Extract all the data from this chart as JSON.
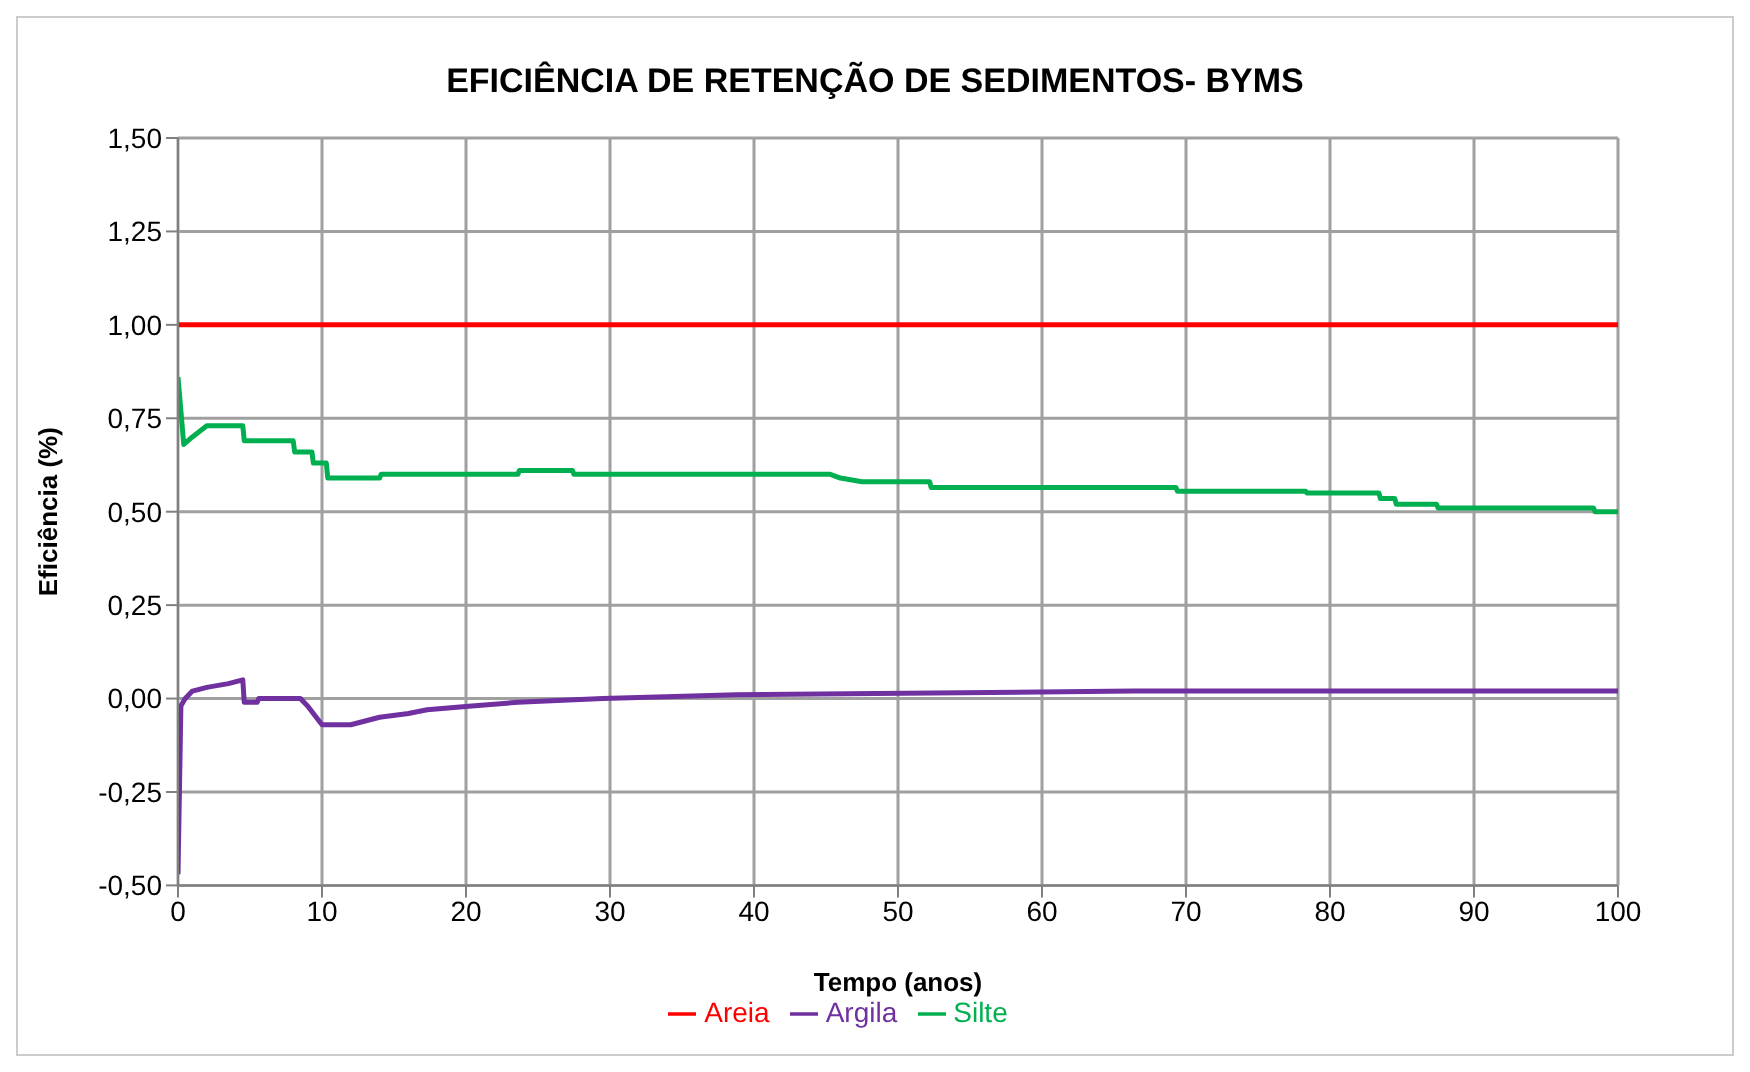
{
  "chart_data": {
    "type": "line",
    "title": "EFICIÊNCIA DE RETENÇÃO DE SEDIMENTOS- BYMS",
    "xlabel": "Tempo (anos)",
    "ylabel": "Eficiência  (%)",
    "xlim": [
      0,
      100
    ],
    "xticks": [
      0,
      10,
      20,
      30,
      40,
      50,
      60,
      70,
      80,
      90,
      100
    ],
    "ylim": [
      -0.5,
      1.5
    ],
    "yticks": [
      {
        "value": -0.5,
        "label": "-0,50"
      },
      {
        "value": -0.25,
        "label": "-0,25"
      },
      {
        "value": 0,
        "label": "0,00"
      },
      {
        "value": 0.25,
        "label": "0,25"
      },
      {
        "value": 0.5,
        "label": "0,50"
      },
      {
        "value": 0.75,
        "label": "0,75"
      },
      {
        "value": 1,
        "label": "1,00"
      },
      {
        "value": 1.25,
        "label": "1,25"
      },
      {
        "value": 1.5,
        "label": "1,50"
      }
    ],
    "grid": true,
    "legend": "bottom",
    "marker": "none",
    "line_style": "solid",
    "series": [
      {
        "name": "Argila",
        "color": "#7030a0",
        "x": [
          0,
          0.2,
          0.5,
          1,
          2,
          3.5,
          4.5,
          4.6,
          5.5,
          5.6,
          8.5,
          9,
          10,
          12,
          14,
          16,
          17.3,
          20.4,
          23.6,
          29.5,
          38.8,
          66.4,
          100
        ],
        "values": [
          -0.47,
          -0.02,
          0,
          0.02,
          0.03,
          0.04,
          0.05,
          -0.01,
          -0.01,
          0,
          0,
          -0.02,
          -0.07,
          -0.07,
          -0.05,
          -0.04,
          -0.03,
          -0.02,
          -0.01,
          0,
          0.01,
          0.02,
          0.02
        ]
      },
      {
        "name": "Silte",
        "color": "#00b050",
        "x": [
          0,
          0.4,
          1,
          2,
          4.5,
          4.6,
          8,
          8.1,
          9.3,
          9.4,
          10.3,
          10.4,
          14,
          14.1,
          23.6,
          23.7,
          27.4,
          27.5,
          45.3,
          46,
          47.5,
          52.2,
          52.3,
          69.3,
          69.4,
          78.3,
          78.4,
          83.4,
          83.5,
          84.5,
          84.6,
          87.4,
          87.5,
          98.3,
          98.4,
          100
        ],
        "values": [
          0.86,
          0.68,
          0.7,
          0.73,
          0.73,
          0.69,
          0.69,
          0.66,
          0.66,
          0.63,
          0.63,
          0.59,
          0.59,
          0.6,
          0.6,
          0.61,
          0.61,
          0.6,
          0.6,
          0.59,
          0.58,
          0.58,
          0.565,
          0.565,
          0.555,
          0.555,
          0.55,
          0.55,
          0.535,
          0.535,
          0.52,
          0.52,
          0.51,
          0.51,
          0.5,
          0.5
        ]
      },
      {
        "name": "Areia",
        "color": "#ff0000",
        "x": [
          0,
          100
        ],
        "values": [
          1,
          1
        ]
      }
    ]
  }
}
